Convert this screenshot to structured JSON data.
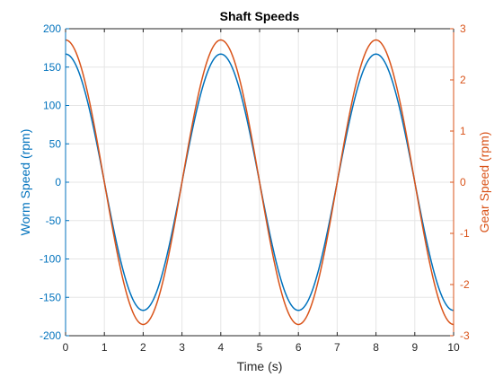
{
  "chart_data": {
    "type": "line",
    "title": "Shaft Speeds",
    "xlabel": "Time (s)",
    "ylabel_left": "Worm Speed (rpm)",
    "ylabel_right": "Gear Speed (rpm)",
    "xlim": [
      0,
      10
    ],
    "ylim_left": [
      -200,
      200
    ],
    "ylim_right": [
      -3,
      3
    ],
    "x_ticks": [
      "0",
      "1",
      "2",
      "3",
      "4",
      "5",
      "6",
      "7",
      "8",
      "9",
      "10"
    ],
    "y_left_ticks": [
      "200",
      "150",
      "100",
      "50",
      "0",
      "-50",
      "-100",
      "-150",
      "-200"
    ],
    "y_right_ticks": [
      "3",
      "2",
      "1",
      "0",
      "-1",
      "-2",
      "-3"
    ],
    "grid": true,
    "series": [
      {
        "axis": "left",
        "color": "#0072BD",
        "x": [
          0,
          0.5,
          1,
          1.5,
          2,
          2.5,
          3,
          3.5,
          4,
          4.5,
          5,
          5.5,
          6,
          6.5,
          7,
          7.5,
          8,
          8.5,
          9,
          9.5,
          10
        ],
        "y": [
          167,
          118,
          0,
          -118,
          -167,
          -118,
          0,
          118,
          167,
          118,
          0,
          -118,
          -167,
          -118,
          0,
          118,
          167,
          118,
          0,
          -118,
          -167
        ]
      },
      {
        "axis": "right",
        "color": "#D95319",
        "x": [
          0,
          0.5,
          1,
          1.5,
          2,
          2.5,
          3,
          3.5,
          4,
          4.5,
          5,
          5.5,
          6,
          6.5,
          7,
          7.5,
          8,
          8.5,
          9,
          9.5,
          10
        ],
        "y": [
          2.78,
          1.97,
          0,
          -1.97,
          -2.78,
          -1.97,
          0,
          1.97,
          2.78,
          1.97,
          0,
          -1.97,
          -2.78,
          -1.97,
          0,
          1.97,
          2.78,
          1.97,
          0,
          -1.97,
          -2.78
        ]
      }
    ]
  },
  "colors": {
    "left_axis": "#0072BD",
    "right_axis": "#D95319",
    "grid": "#E5E5E5",
    "axis_black": "#262626"
  }
}
